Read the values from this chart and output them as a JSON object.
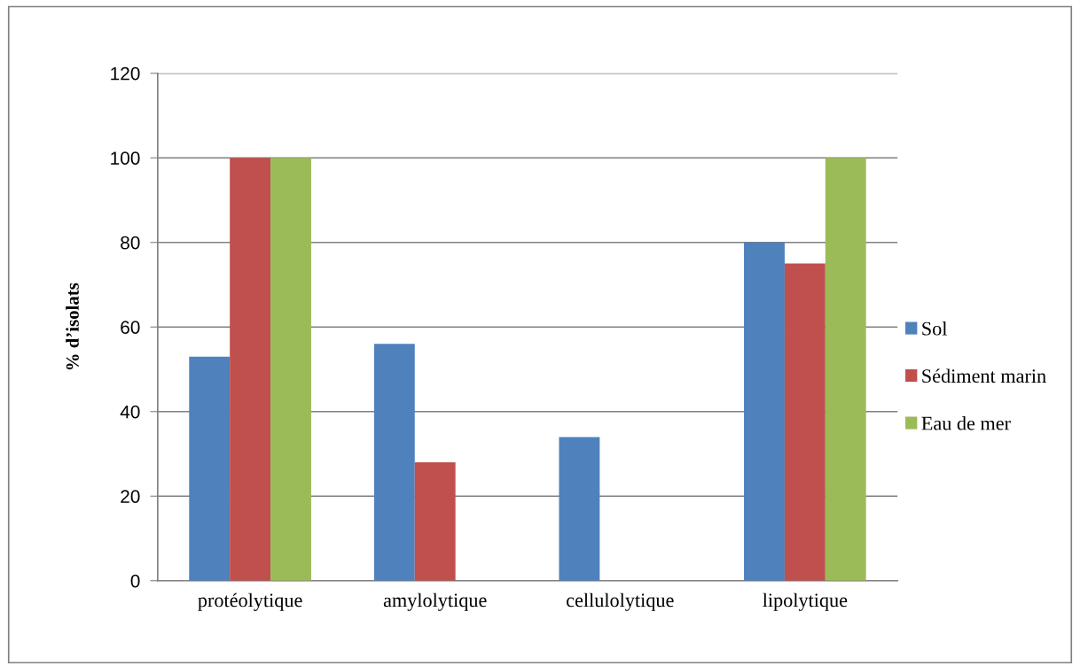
{
  "chart_data": {
    "type": "bar",
    "ylabel": "% d’isolats",
    "categories": [
      "protéolytique",
      "amylolytique",
      "cellulolytique",
      "lipolytique"
    ],
    "series": [
      {
        "name": "Sol",
        "color": "#4f81bd",
        "values": [
          53,
          56,
          34,
          80
        ]
      },
      {
        "name": "Sédiment marin",
        "color": "#c0504d",
        "values": [
          100,
          28,
          0,
          75
        ]
      },
      {
        "name": "Eau de mer",
        "color": "#9bbb59",
        "values": [
          100,
          0,
          0,
          100
        ]
      }
    ],
    "ylim": [
      0,
      120
    ],
    "yticks": [
      0,
      20,
      40,
      60,
      80,
      100,
      120
    ],
    "grid": "y",
    "legend": "right"
  }
}
